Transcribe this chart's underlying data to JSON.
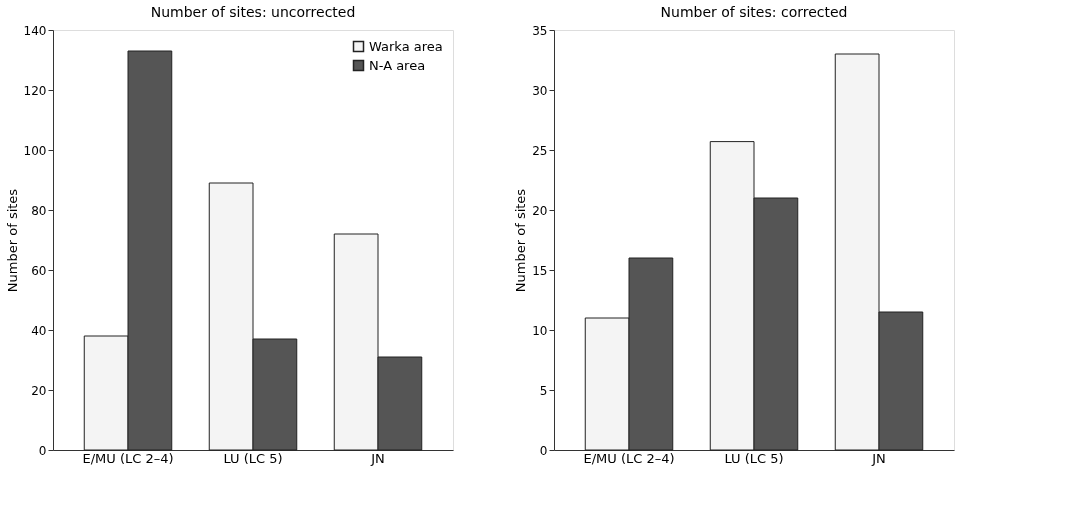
{
  "chart_data": [
    {
      "type": "bar",
      "title": "Number of sites: uncorrected",
      "ylabel": "Number of sites",
      "categories": [
        "E/MU (LC 2–4)",
        "LU (LC 5)",
        "JN"
      ],
      "ylim": [
        0,
        140
      ],
      "yticks": [
        0,
        20,
        40,
        60,
        80,
        100,
        120,
        140
      ],
      "legend": "top right",
      "series": [
        {
          "name": "Warka area",
          "color": "#f4f4f4",
          "values": [
            38,
            89,
            72
          ]
        },
        {
          "name": "N-A area",
          "color": "#555555",
          "values": [
            133,
            37,
            31
          ]
        }
      ]
    },
    {
      "type": "bar",
      "title": "Number of sites: corrected",
      "ylabel": "Number of sites",
      "categories": [
        "E/MU (LC 2–4)",
        "LU (LC 5)",
        "JN"
      ],
      "ylim": [
        0,
        35
      ],
      "yticks": [
        0,
        5,
        10,
        15,
        20,
        25,
        30,
        35
      ],
      "series": [
        {
          "color": "#f4f4f4",
          "values": [
            11,
            25.7,
            33
          ]
        },
        {
          "color": "#555555",
          "values": [
            16,
            21,
            11.5
          ]
        }
      ]
    }
  ]
}
